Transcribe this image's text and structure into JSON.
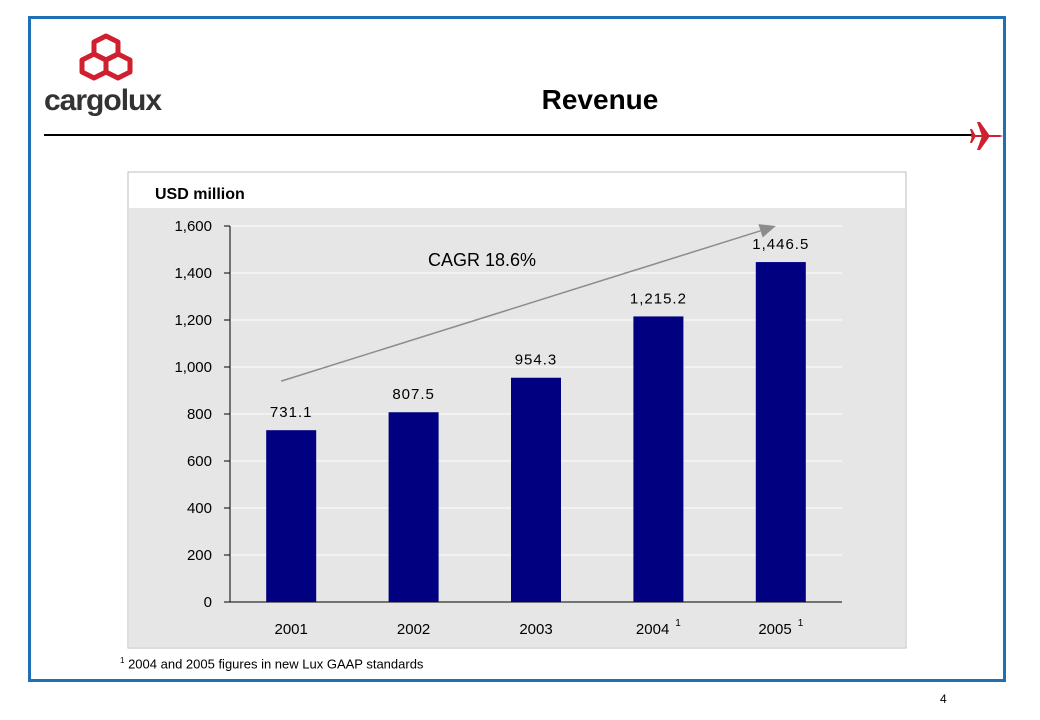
{
  "header": {
    "logo_text": "cargolux",
    "title": "Revenue"
  },
  "footnote": {
    "marker": "1",
    "text": "2004 and 2005 figures in new Lux GAAP standards"
  },
  "page_number": "4",
  "colors": {
    "frame": "#1f6fb5",
    "bar": "#000080",
    "plot_bg": "#e6e6e6",
    "brand_red": "#d02030",
    "arrow": "#8c8c8c"
  },
  "icons": {
    "logo": "stacked-cubes-logo-icon",
    "plane": "airplane-icon"
  },
  "chart_data": {
    "type": "bar",
    "unit_label": "USD million",
    "categories": [
      "2001",
      "2002",
      "2003",
      "2004",
      "2005"
    ],
    "category_superscripts": [
      "",
      "",
      "",
      "1",
      "1"
    ],
    "values": [
      731.1,
      807.5,
      954.3,
      1215.2,
      1446.5
    ],
    "value_labels": [
      "731.1",
      "807.5",
      "954.3",
      "1,215.2",
      "1,446.5"
    ],
    "ylim": [
      0,
      1600
    ],
    "yticks": [
      0,
      200,
      400,
      600,
      800,
      1000,
      1200,
      1400,
      1600
    ],
    "ytick_labels": [
      "0",
      "200",
      "400",
      "600",
      "800",
      "1,000",
      "1,200",
      "1,400",
      "1,600"
    ],
    "grid": true,
    "annotation": {
      "text": "CAGR 18.6%",
      "arrow_from": [
        "2001",
        940
      ],
      "arrow_to": [
        "2005",
        1600
      ]
    },
    "xlabel": "",
    "ylabel": ""
  }
}
